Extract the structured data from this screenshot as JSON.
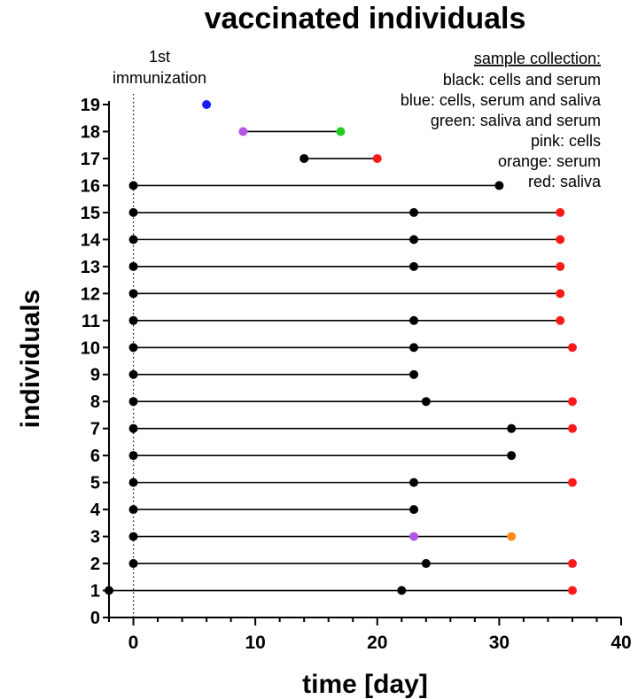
{
  "chart_data": {
    "type": "scatter",
    "title": "vaccinated individuals",
    "xlabel": "time [day]",
    "ylabel": "individuals",
    "xlim": [
      -2,
      40
    ],
    "ylim": [
      0,
      19
    ],
    "x_ticks": [
      0,
      10,
      20,
      30,
      40
    ],
    "y_ticks": [
      0,
      1,
      2,
      3,
      4,
      5,
      6,
      7,
      8,
      9,
      10,
      11,
      12,
      13,
      14,
      15,
      16,
      17,
      18,
      19
    ],
    "grid": false,
    "reference_line": {
      "x": 0,
      "style": "dotted",
      "label_line1": "1st",
      "label_line2": "immunization"
    },
    "legend": {
      "placement": "top-right",
      "title": "sample collection:",
      "entries": [
        "black: cells and serum",
        "blue: cells, serum and saliva",
        "green: saliva and serum",
        "pink: cells",
        "orange: serum",
        "red: saliva"
      ]
    },
    "colors": {
      "black": "#000000",
      "blue": "#1a1aff",
      "green": "#22cc22",
      "pink": "#b455e6",
      "orange": "#ff8c1a",
      "red": "#ff1a1a"
    },
    "series": [
      {
        "y": 1,
        "points": [
          {
            "x": -2,
            "c": "black"
          },
          {
            "x": 22,
            "c": "black"
          },
          {
            "x": 36,
            "c": "red"
          }
        ]
      },
      {
        "y": 2,
        "points": [
          {
            "x": 0,
            "c": "black"
          },
          {
            "x": 24,
            "c": "black"
          },
          {
            "x": 36,
            "c": "red"
          }
        ]
      },
      {
        "y": 3,
        "points": [
          {
            "x": 0,
            "c": "black"
          },
          {
            "x": 23,
            "c": "pink"
          },
          {
            "x": 31,
            "c": "orange"
          }
        ]
      },
      {
        "y": 4,
        "points": [
          {
            "x": 0,
            "c": "black"
          },
          {
            "x": 23,
            "c": "black"
          }
        ]
      },
      {
        "y": 5,
        "points": [
          {
            "x": 0,
            "c": "black"
          },
          {
            "x": 23,
            "c": "black"
          },
          {
            "x": 36,
            "c": "red"
          }
        ]
      },
      {
        "y": 6,
        "points": [
          {
            "x": 0,
            "c": "black"
          },
          {
            "x": 31,
            "c": "black"
          }
        ]
      },
      {
        "y": 7,
        "points": [
          {
            "x": 0,
            "c": "black"
          },
          {
            "x": 31,
            "c": "black"
          },
          {
            "x": 36,
            "c": "red"
          }
        ]
      },
      {
        "y": 8,
        "points": [
          {
            "x": 0,
            "c": "black"
          },
          {
            "x": 24,
            "c": "black"
          },
          {
            "x": 36,
            "c": "red"
          }
        ]
      },
      {
        "y": 9,
        "points": [
          {
            "x": 0,
            "c": "black"
          },
          {
            "x": 23,
            "c": "black"
          }
        ]
      },
      {
        "y": 10,
        "points": [
          {
            "x": 0,
            "c": "black"
          },
          {
            "x": 23,
            "c": "black"
          },
          {
            "x": 36,
            "c": "red"
          }
        ]
      },
      {
        "y": 11,
        "points": [
          {
            "x": 0,
            "c": "black"
          },
          {
            "x": 23,
            "c": "black"
          },
          {
            "x": 35,
            "c": "red"
          }
        ]
      },
      {
        "y": 12,
        "points": [
          {
            "x": 0,
            "c": "black"
          },
          {
            "x": 35,
            "c": "red"
          }
        ]
      },
      {
        "y": 13,
        "points": [
          {
            "x": 0,
            "c": "black"
          },
          {
            "x": 23,
            "c": "black"
          },
          {
            "x": 35,
            "c": "red"
          }
        ]
      },
      {
        "y": 14,
        "points": [
          {
            "x": 0,
            "c": "black"
          },
          {
            "x": 23,
            "c": "black"
          },
          {
            "x": 35,
            "c": "red"
          }
        ]
      },
      {
        "y": 15,
        "points": [
          {
            "x": 0,
            "c": "black"
          },
          {
            "x": 23,
            "c": "black"
          },
          {
            "x": 35,
            "c": "red"
          }
        ]
      },
      {
        "y": 16,
        "points": [
          {
            "x": 0,
            "c": "black"
          },
          {
            "x": 30,
            "c": "black"
          }
        ]
      },
      {
        "y": 17,
        "points": [
          {
            "x": 14,
            "c": "black"
          },
          {
            "x": 20,
            "c": "red"
          }
        ]
      },
      {
        "y": 18,
        "points": [
          {
            "x": 9,
            "c": "pink"
          },
          {
            "x": 17,
            "c": "green"
          }
        ]
      },
      {
        "y": 19,
        "points": [
          {
            "x": 6,
            "c": "blue"
          }
        ]
      }
    ]
  }
}
